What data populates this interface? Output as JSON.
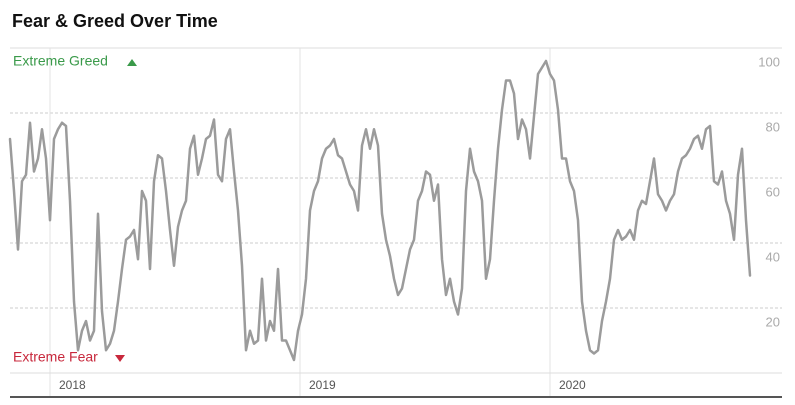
{
  "chart_data": {
    "type": "line",
    "title": "Fear & Greed Over Time",
    "annotations": [
      "Extreme Greed",
      "Extreme Fear"
    ],
    "color": "#9b9b9b",
    "grid": true,
    "xlim": [
      2017.84,
      2020.828
    ],
    "xticks": [
      2018,
      2019,
      2020
    ],
    "ylim": [
      0,
      100
    ],
    "yticks": [
      20,
      40,
      60,
      80,
      100
    ],
    "x": [
      2017.84,
      2017.856,
      2017.872,
      2017.888,
      2017.904,
      2017.92,
      2017.936,
      2017.952,
      2017.968,
      2017.984,
      2018.0,
      2018.016,
      2018.032,
      2018.048,
      2018.064,
      2018.08,
      2018.096,
      2018.112,
      2018.128,
      2018.144,
      2018.16,
      2018.176,
      2018.192,
      2018.208,
      2018.224,
      2018.24,
      2018.256,
      2018.272,
      2018.288,
      2018.304,
      2018.32,
      2018.336,
      2018.352,
      2018.368,
      2018.384,
      2018.4,
      2018.416,
      2018.432,
      2018.448,
      2018.464,
      2018.48,
      2018.496,
      2018.512,
      2018.528,
      2018.544,
      2018.56,
      2018.576,
      2018.592,
      2018.608,
      2018.624,
      2018.64,
      2018.656,
      2018.672,
      2018.688,
      2018.704,
      2018.72,
      2018.736,
      2018.752,
      2018.768,
      2018.784,
      2018.8,
      2018.816,
      2018.832,
      2018.848,
      2018.864,
      2018.88,
      2018.896,
      2018.912,
      2018.928,
      2018.944,
      2018.96,
      2018.976,
      2018.992,
      2019.008,
      2019.024,
      2019.04,
      2019.056,
      2019.072,
      2019.088,
      2019.104,
      2019.12,
      2019.136,
      2019.152,
      2019.168,
      2019.184,
      2019.2,
      2019.216,
      2019.232,
      2019.248,
      2019.264,
      2019.28,
      2019.296,
      2019.312,
      2019.328,
      2019.344,
      2019.36,
      2019.376,
      2019.392,
      2019.408,
      2019.424,
      2019.44,
      2019.456,
      2019.472,
      2019.488,
      2019.504,
      2019.52,
      2019.536,
      2019.552,
      2019.568,
      2019.584,
      2019.6,
      2019.616,
      2019.632,
      2019.648,
      2019.664,
      2019.68,
      2019.696,
      2019.712,
      2019.728,
      2019.744,
      2019.76,
      2019.776,
      2019.792,
      2019.808,
      2019.824,
      2019.84,
      2019.856,
      2019.872,
      2019.888,
      2019.904,
      2019.92,
      2019.936,
      2019.952,
      2019.968,
      2019.984,
      2020.0,
      2020.016,
      2020.032,
      2020.048,
      2020.064,
      2020.08,
      2020.096,
      2020.112,
      2020.128,
      2020.144,
      2020.16,
      2020.176,
      2020.192,
      2020.208,
      2020.224,
      2020.24,
      2020.256,
      2020.272,
      2020.288,
      2020.304,
      2020.32,
      2020.336,
      2020.352,
      2020.368,
      2020.384,
      2020.4,
      2020.416,
      2020.432,
      2020.448,
      2020.464,
      2020.48,
      2020.496,
      2020.512,
      2020.528,
      2020.544,
      2020.56,
      2020.576,
      2020.592,
      2020.608,
      2020.624,
      2020.64,
      2020.656,
      2020.672,
      2020.688,
      2020.704,
      2020.72,
      2020.736,
      2020.752,
      2020.768,
      2020.784,
      2020.8
    ],
    "values": [
      72,
      56,
      38,
      59,
      61,
      77,
      62,
      66,
      75,
      66,
      47,
      72,
      75,
      77,
      76,
      53,
      22,
      7,
      13,
      16,
      10,
      13,
      49,
      19,
      7,
      9,
      13,
      22,
      32,
      41,
      42,
      44,
      35,
      56,
      53,
      32,
      59,
      67,
      66,
      56,
      44,
      33,
      45,
      50,
      53,
      69,
      73,
      61,
      66,
      72,
      73,
      78,
      61,
      59,
      72,
      75,
      62,
      50,
      33,
      7,
      13,
      9,
      10,
      29,
      10,
      16,
      13,
      32,
      10,
      10,
      7,
      4,
      13,
      18,
      29,
      50,
      56,
      59,
      66,
      69,
      70,
      72,
      67,
      66,
      62,
      58,
      56,
      50,
      70,
      75,
      69,
      75,
      70,
      49,
      41,
      36,
      29,
      24,
      26,
      32,
      38,
      41,
      53,
      56,
      62,
      61,
      53,
      58,
      35,
      24,
      29,
      22,
      18,
      26,
      56,
      69,
      62,
      59,
      53,
      29,
      35,
      53,
      69,
      81,
      90,
      90,
      86,
      72,
      78,
      75,
      66,
      79,
      92,
      94,
      96,
      92,
      90,
      81,
      66,
      66,
      59,
      56,
      47,
      22,
      13,
      7,
      6,
      7,
      16,
      22,
      29,
      41,
      44,
      41,
      42,
      44,
      41,
      50,
      53,
      52,
      59,
      66,
      55,
      53,
      50,
      53,
      55,
      62,
      66,
      67,
      69,
      72,
      73,
      69,
      75,
      76,
      59,
      58,
      62,
      53,
      49,
      41,
      61,
      69,
      47,
      30
    ]
  }
}
